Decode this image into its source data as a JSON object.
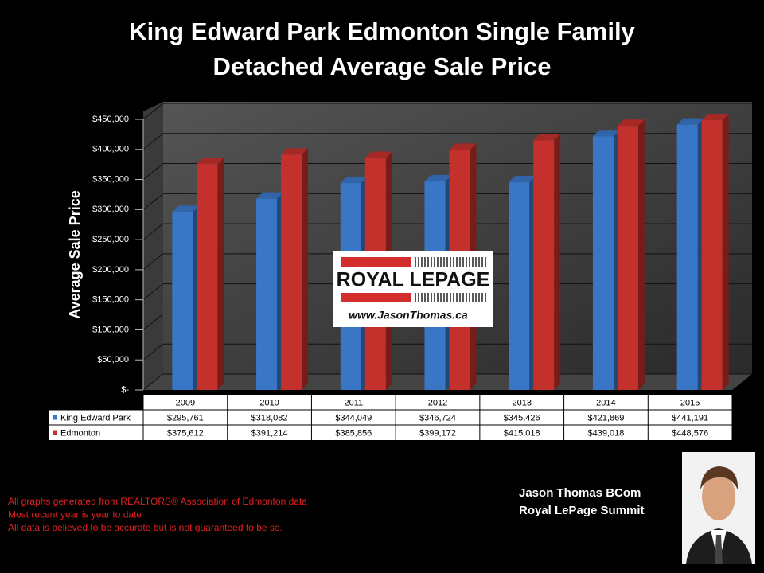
{
  "chart_data": {
    "type": "bar",
    "title": "King Edward Park Edmonton Single Family Detached Average Sale Price",
    "y_label": "Average Sale Price",
    "categories": [
      "2009",
      "2010",
      "2011",
      "2012",
      "2013",
      "2014",
      "2015"
    ],
    "series": [
      {
        "name": "King Edward Park",
        "color": "#3a76c6",
        "values": [
          295761,
          318082,
          344049,
          346724,
          345426,
          421869,
          441191
        ],
        "value_labels": [
          "$295,761",
          "$318,082",
          "$344,049",
          "$346,724",
          "$345,426",
          "$421,869",
          "$441,191"
        ]
      },
      {
        "name": "Edmonton",
        "color": "#c4302c",
        "values": [
          375612,
          391214,
          385856,
          399172,
          415018,
          439018,
          448576
        ],
        "value_labels": [
          "$375,612",
          "$391,214",
          "$385,856",
          "$399,172",
          "$415,018",
          "$439,018",
          "$448,576"
        ]
      }
    ],
    "ylim": [
      0,
      450000
    ],
    "yticks": [
      {
        "value": 0,
        "label": "$-"
      },
      {
        "value": 50000,
        "label": "$50,000"
      },
      {
        "value": 100000,
        "label": "$100,000"
      },
      {
        "value": 150000,
        "label": "$150,000"
      },
      {
        "value": 200000,
        "label": "$200,000"
      },
      {
        "value": 250000,
        "label": "$250,000"
      },
      {
        "value": 300000,
        "label": "$300,000"
      },
      {
        "value": 350000,
        "label": "$350,000"
      },
      {
        "value": 400000,
        "label": "$400,000"
      },
      {
        "value": 450000,
        "label": "$450,000"
      }
    ],
    "grid": true
  },
  "logo": {
    "brand": "ROYAL LEPAGE",
    "url": "www.JasonThomas.ca"
  },
  "notes": [
    "All graphs generated from REALTORS® Association of Edmonton data",
    "Most recent year is year to date",
    "All data is believed to be accurate but is not guaranteed to be so."
  ],
  "signature": [
    "Jason Thomas BCom",
    "Royal LePage Summit"
  ]
}
